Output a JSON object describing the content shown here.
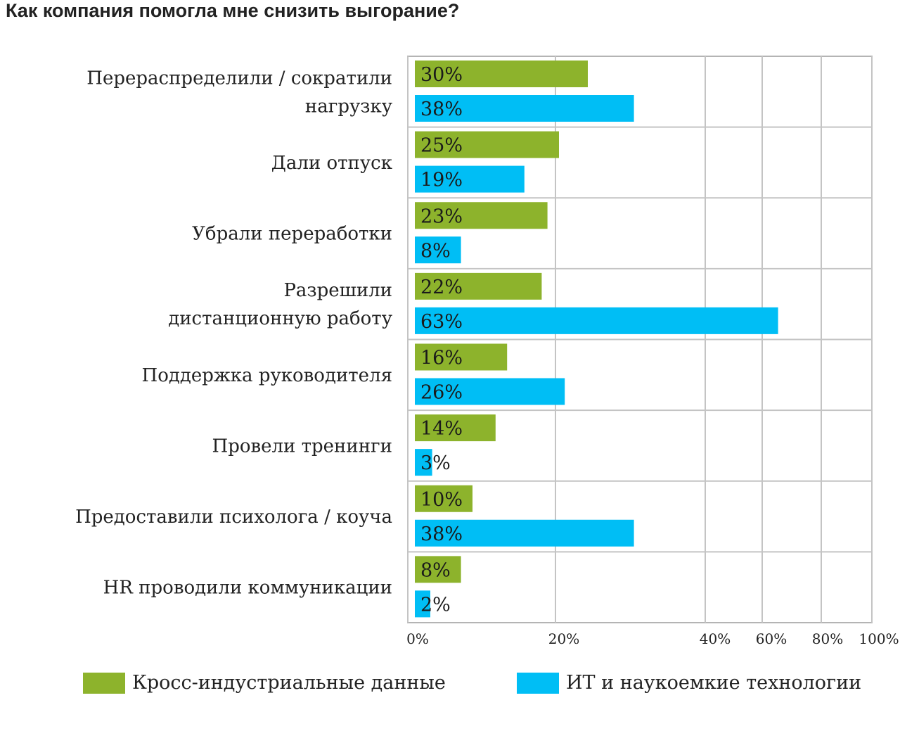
{
  "chart_data": {
    "type": "bar",
    "orientation": "horizontal",
    "title": "Как компания помогла мне снизить выгорание?",
    "categories": [
      [
        "Перераспределили / сократили",
        "нагрузку"
      ],
      [
        "Дали отпуск"
      ],
      [
        "Убрали переработки"
      ],
      [
        "Разрешили",
        "дистанционную работу"
      ],
      [
        "Поддержка руководителя"
      ],
      [
        "Провели тренинги"
      ],
      [
        "Предоставили психолога / коуча"
      ],
      [
        "HR проводили коммуникации"
      ]
    ],
    "series": [
      {
        "name": "Кросс-индустриальные данные",
        "color": "#8db32c",
        "values": [
          30,
          25,
          23,
          22,
          16,
          14,
          10,
          8
        ],
        "labels": [
          "30%",
          "25%",
          "23%",
          "22%",
          "16%",
          "14%",
          "10%",
          "8%"
        ]
      },
      {
        "name": "ИТ и наукоемкие технологии",
        "color": "#00bef5",
        "values": [
          38,
          19,
          8,
          63,
          26,
          3,
          38,
          2
        ],
        "labels": [
          "38%",
          "19%",
          "8%",
          "63%",
          "26%",
          "3%",
          "38%",
          "2%"
        ]
      }
    ],
    "x_ticks": [
      "0%",
      "20%",
      "40%",
      "60%",
      "80%",
      "100%"
    ],
    "grid": true,
    "legend_position": "bottom"
  }
}
